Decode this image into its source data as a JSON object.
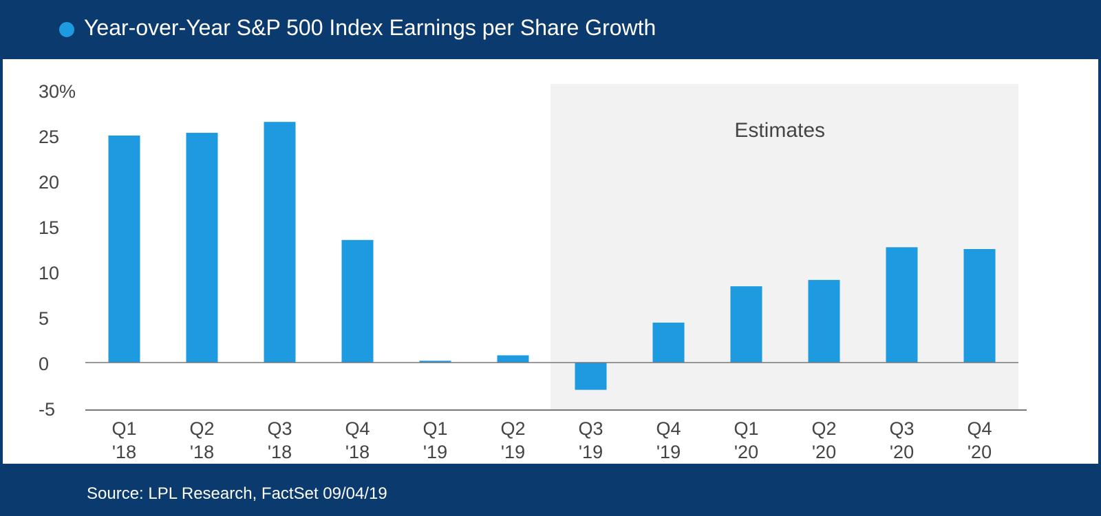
{
  "header": {
    "title": "Year-over-Year S&P 500 Index Earnings per Share Growth"
  },
  "footer": {
    "source": "Source: LPL Research, FactSet    09/04/19"
  },
  "colors": {
    "bar": "#1e9ae0",
    "frame": "#0b3a6e",
    "estimate_band": "#f2f2f2",
    "axis": "#777777",
    "text": "#444444"
  },
  "chart_data": {
    "type": "bar",
    "title": "Year-over-Year S&P 500 Index Earnings per Share Growth",
    "categories": [
      {
        "line1": "Q1",
        "line2": "'18"
      },
      {
        "line1": "Q2",
        "line2": "'18"
      },
      {
        "line1": "Q3",
        "line2": "'18"
      },
      {
        "line1": "Q4",
        "line2": "'18"
      },
      {
        "line1": "Q1",
        "line2": "'19"
      },
      {
        "line1": "Q2",
        "line2": "'19"
      },
      {
        "line1": "Q3",
        "line2": "'19"
      },
      {
        "line1": "Q4",
        "line2": "'19"
      },
      {
        "line1": "Q1",
        "line2": "'20"
      },
      {
        "line1": "Q2",
        "line2": "'20"
      },
      {
        "line1": "Q3",
        "line2": "'20"
      },
      {
        "line1": "Q4",
        "line2": "'20"
      }
    ],
    "values": [
      25.0,
      25.3,
      26.5,
      13.5,
      0.2,
      0.8,
      -3.0,
      4.4,
      8.4,
      9.1,
      12.7,
      12.5
    ],
    "ylim": [
      -5,
      30
    ],
    "yticks": [
      -5,
      0,
      5,
      10,
      15,
      20,
      25,
      30
    ],
    "ytick_labels": [
      "-5",
      "0",
      "5",
      "10",
      "15",
      "20",
      "25",
      "30%"
    ],
    "estimates": {
      "label": "Estimates",
      "start_index": 6,
      "end_index": 11
    },
    "xlabel": "",
    "ylabel": ""
  }
}
